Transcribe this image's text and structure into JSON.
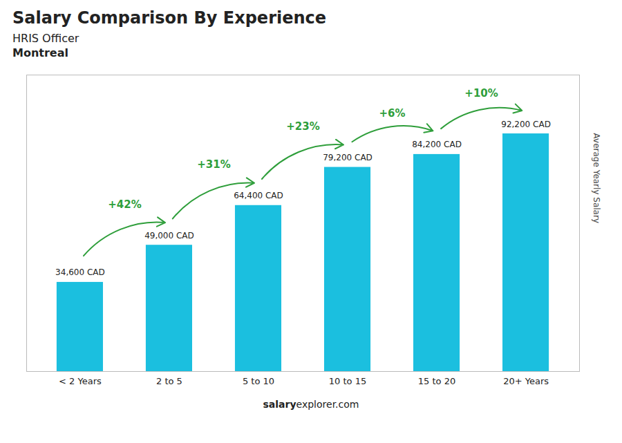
{
  "chart_data": {
    "type": "bar",
    "title": "Salary Comparison By Experience",
    "subtitle": [
      "HRIS Officer",
      "Montreal"
    ],
    "categories": [
      "< 2 Years",
      "2 to 5",
      "5 to 10",
      "10 to 15",
      "15 to 20",
      "20+ Years"
    ],
    "values": [
      34600,
      49000,
      64400,
      79200,
      84200,
      92200
    ],
    "value_labels": [
      "34,600 CAD",
      "49,000 CAD",
      "64,400 CAD",
      "79,200 CAD",
      "84,200 CAD",
      "92,200 CAD"
    ],
    "data_labels": true,
    "annotations": [
      "+42%",
      "+31%",
      "+23%",
      "+6%",
      "+10%"
    ],
    "ylabel": "Average Yearly Salary",
    "caption": [
      "salary",
      "explorer.com"
    ],
    "color": "#1BBFDF",
    "ylim": [
      0,
      115000
    ],
    "tick_labels": "x",
    "grid": false
  }
}
